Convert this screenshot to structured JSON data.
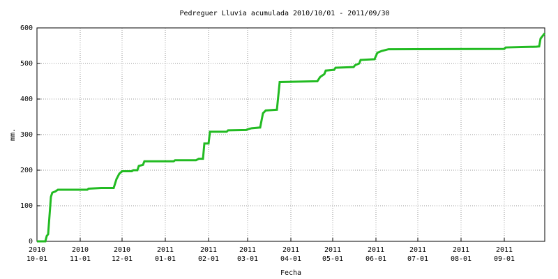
{
  "chart_data": {
    "type": "line",
    "title": "Pedreguer Lluvia acumulada 2010/10/01 - 2011/09/30",
    "xlabel": "Fecha",
    "ylabel": "mm.",
    "grid": true,
    "xlim": [
      "2010-10-01",
      "2011-09-30"
    ],
    "xticks": [
      {
        "value": "2010-10-01",
        "label": [
          "2010",
          "10-01"
        ]
      },
      {
        "value": "2010-11-01",
        "label": [
          "2010",
          "11-01"
        ]
      },
      {
        "value": "2010-12-01",
        "label": [
          "2010",
          "12-01"
        ]
      },
      {
        "value": "2011-01-01",
        "label": [
          "2011",
          "01-01"
        ]
      },
      {
        "value": "2011-02-01",
        "label": [
          "2011",
          "02-01"
        ]
      },
      {
        "value": "2011-03-01",
        "label": [
          "2011",
          "03-01"
        ]
      },
      {
        "value": "2011-04-01",
        "label": [
          "2011",
          "04-01"
        ]
      },
      {
        "value": "2011-05-01",
        "label": [
          "2011",
          "05-01"
        ]
      },
      {
        "value": "2011-06-01",
        "label": [
          "2011",
          "06-01"
        ]
      },
      {
        "value": "2011-07-01",
        "label": [
          "2011",
          "07-01"
        ]
      },
      {
        "value": "2011-08-01",
        "label": [
          "2011",
          "08-01"
        ]
      },
      {
        "value": "2011-09-01",
        "label": [
          "2011",
          "09-01"
        ]
      }
    ],
    "ylim": [
      0,
      600
    ],
    "yticks": [
      0,
      100,
      200,
      300,
      400,
      500,
      600
    ],
    "x": [
      "2010-10-01",
      "2010-10-07",
      "2010-10-08",
      "2010-10-09",
      "2010-10-11",
      "2010-10-12",
      "2010-10-14",
      "2010-10-16",
      "2010-11-06",
      "2010-11-07",
      "2010-11-16",
      "2010-11-25",
      "2010-11-27",
      "2010-11-29",
      "2010-12-01",
      "2010-12-08",
      "2010-12-09",
      "2010-12-12",
      "2010-12-13",
      "2010-12-16",
      "2010-12-17",
      "2011-01-07",
      "2011-01-08",
      "2011-01-23",
      "2011-01-25",
      "2011-01-28",
      "2011-01-29",
      "2011-02-01",
      "2011-02-02",
      "2011-02-14",
      "2011-02-15",
      "2011-02-28",
      "2011-03-01",
      "2011-03-04",
      "2011-03-10",
      "2011-03-12",
      "2011-03-14",
      "2011-03-22",
      "2011-03-24",
      "2011-04-20",
      "2011-04-22",
      "2011-04-25",
      "2011-04-26",
      "2011-05-02",
      "2011-05-03",
      "2011-05-16",
      "2011-05-17",
      "2011-05-20",
      "2011-05-21",
      "2011-05-31",
      "2011-06-02",
      "2011-06-05",
      "2011-06-10",
      "2011-09-01",
      "2011-09-02",
      "2011-09-24",
      "2011-09-26",
      "2011-09-27",
      "2011-09-29",
      "2011-09-30"
    ],
    "series": [
      {
        "color": "#22bb22",
        "values": [
          0,
          0,
          15,
          20,
          125,
          137,
          140,
          145,
          145,
          148,
          150,
          150,
          175,
          190,
          197,
          197,
          200,
          200,
          212,
          215,
          225,
          225,
          228,
          228,
          232,
          232,
          275,
          275,
          308,
          308,
          312,
          313,
          315,
          318,
          320,
          360,
          368,
          370,
          448,
          450,
          462,
          470,
          480,
          482,
          488,
          490,
          495,
          500,
          510,
          512,
          530,
          535,
          540,
          541,
          545,
          547,
          548,
          570,
          580,
          585
        ]
      }
    ]
  }
}
